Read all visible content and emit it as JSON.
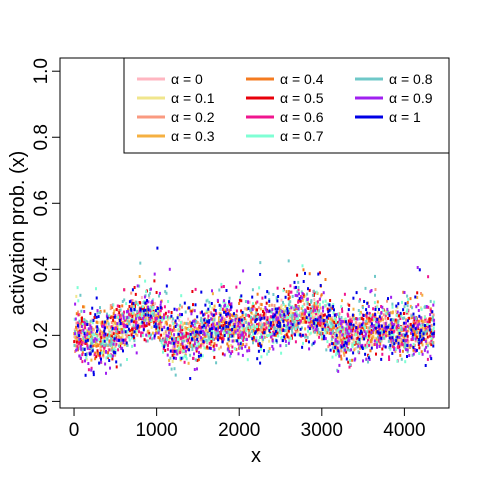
{
  "chart_data": {
    "type": "scatter",
    "title": "",
    "xlabel": "x",
    "ylabel": "activation prob. (x)",
    "xlim": [
      -170,
      4540
    ],
    "ylim": [
      -0.02,
      1.04
    ],
    "x_ticks": [
      "0",
      "1000",
      "2000",
      "3000",
      "4000"
    ],
    "x_tick_values": [
      0,
      1000,
      2000,
      3000,
      4000
    ],
    "y_ticks": [
      "0.0",
      "0.2",
      "0.4",
      "0.6",
      "0.8",
      "1.0"
    ],
    "y_tick_values": [
      0,
      0.2,
      0.4,
      0.6,
      0.8,
      1.0
    ],
    "x_range": [
      0,
      4360
    ],
    "grid": false,
    "legend_position": "top-right",
    "legend_columns": 3,
    "legend_symbol": "α",
    "baseline_profile": {
      "x": [
        0,
        200,
        400,
        600,
        800,
        1000,
        1200,
        1400,
        1600,
        1800,
        2000,
        2200,
        2400,
        2600,
        2800,
        3000,
        3200,
        3400,
        3600,
        3800,
        4000,
        4200,
        4360
      ],
      "y": [
        0.2,
        0.19,
        0.18,
        0.22,
        0.26,
        0.25,
        0.18,
        0.19,
        0.21,
        0.22,
        0.22,
        0.23,
        0.23,
        0.25,
        0.26,
        0.25,
        0.2,
        0.2,
        0.22,
        0.21,
        0.21,
        0.21,
        0.22
      ]
    },
    "typical_spread": [
      0.05,
      0.4
    ],
    "series": [
      {
        "name": "α = 0",
        "alpha": "0",
        "color": "#FFB6C1",
        "order": 0
      },
      {
        "name": "α = 0.1",
        "alpha": "0.1",
        "color": "#F0E68C",
        "order": 1
      },
      {
        "name": "α = 0.2",
        "alpha": "0.2",
        "color": "#FA9A80",
        "order": 2
      },
      {
        "name": "α = 0.3",
        "alpha": "0.3",
        "color": "#F5B041",
        "order": 3
      },
      {
        "name": "α = 0.4",
        "alpha": "0.4",
        "color": "#F47B20",
        "order": 4
      },
      {
        "name": "α = 0.5",
        "alpha": "0.5",
        "color": "#E8000B",
        "order": 5
      },
      {
        "name": "α = 0.6",
        "alpha": "0.6",
        "color": "#F0168F",
        "order": 6
      },
      {
        "name": "α = 0.7",
        "alpha": "0.7",
        "color": "#7FFFD4",
        "order": 7
      },
      {
        "name": "α = 0.8",
        "alpha": "0.8",
        "color": "#6FC8C8",
        "order": 8
      },
      {
        "name": "α = 0.9",
        "alpha": "0.9",
        "color": "#A020F0",
        "order": 9
      },
      {
        "name": "α = 1",
        "alpha": "1",
        "color": "#0000E6",
        "order": 10
      }
    ]
  }
}
